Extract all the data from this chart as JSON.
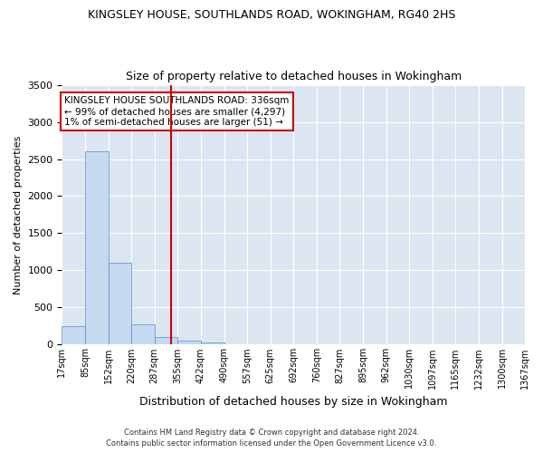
{
  "title1": "KINGSLEY HOUSE, SOUTHLANDS ROAD, WOKINGHAM, RG40 2HS",
  "title2": "Size of property relative to detached houses in Wokingham",
  "xlabel": "Distribution of detached houses by size in Wokingham",
  "ylabel": "Number of detached properties",
  "annotation_title": "KINGSLEY HOUSE SOUTHLANDS ROAD: 336sqm",
  "annotation_line1": "← 99% of detached houses are smaller (4,297)",
  "annotation_line2": "1% of semi-detached houses are larger (51) →",
  "property_size": 336,
  "bin_edges": [
    17,
    85,
    152,
    220,
    287,
    355,
    422,
    490,
    557,
    625,
    692,
    760,
    827,
    895,
    962,
    1030,
    1097,
    1165,
    1232,
    1300,
    1367
  ],
  "bin_labels": [
    "17sqm",
    "85sqm",
    "152sqm",
    "220sqm",
    "287sqm",
    "355sqm",
    "422sqm",
    "490sqm",
    "557sqm",
    "625sqm",
    "692sqm",
    "760sqm",
    "827sqm",
    "895sqm",
    "962sqm",
    "1030sqm",
    "1097sqm",
    "1165sqm",
    "1232sqm",
    "1300sqm",
    "1367sqm"
  ],
  "bar_heights": [
    250,
    2600,
    1100,
    270,
    100,
    50,
    30,
    0,
    0,
    0,
    0,
    0,
    0,
    0,
    0,
    0,
    0,
    0,
    0,
    0
  ],
  "bar_color": "#c5d9f0",
  "bar_edge_color": "#5b8dc8",
  "vline_color": "#cc0000",
  "vline_x": 336,
  "ylim": [
    0,
    3500
  ],
  "yticks": [
    0,
    500,
    1000,
    1500,
    2000,
    2500,
    3000,
    3500
  ],
  "bg_color": "#dce6f1",
  "grid_color": "#ffffff",
  "footer1": "Contains HM Land Registry data © Crown copyright and database right 2024.",
  "footer2": "Contains public sector information licensed under the Open Government Licence v3.0.",
  "title1_fontsize": 9,
  "title2_fontsize": 9,
  "annotation_box_color": "#cc0000"
}
